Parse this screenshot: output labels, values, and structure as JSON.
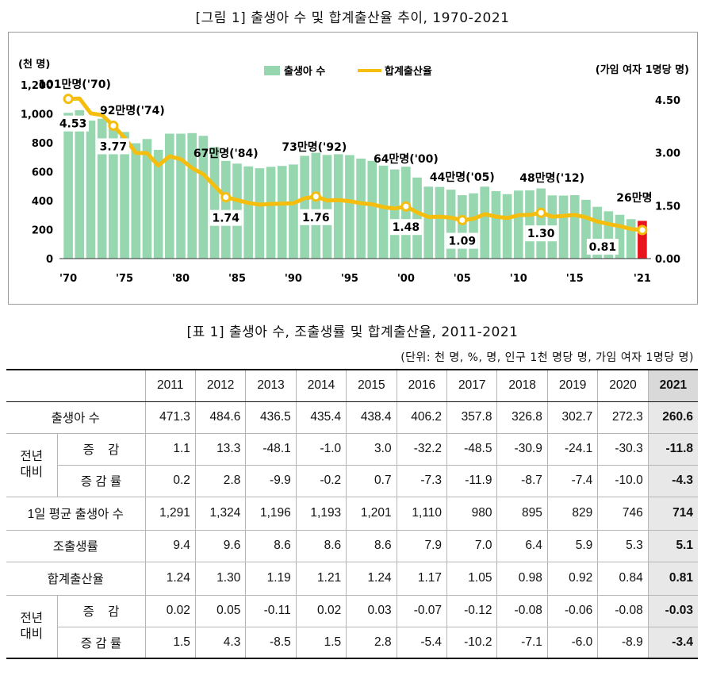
{
  "figure_title": "[그림 1] 출생아 수 및 합계출산율 추이, 1970-2021",
  "table_title": "[표 1] 출생아 수, 조출생률 및 합계출산율, 2011-2021",
  "unit_note": "(단위: 천 명, %, 명, 인구 1천 명당 명, 가임 여자 1명당 명)",
  "chart_data": {
    "type": "bar",
    "years": [
      1970,
      1971,
      1972,
      1973,
      1974,
      1975,
      1976,
      1977,
      1978,
      1979,
      1980,
      1981,
      1982,
      1983,
      1984,
      1985,
      1986,
      1987,
      1988,
      1989,
      1990,
      1991,
      1992,
      1993,
      1994,
      1995,
      1996,
      1997,
      1998,
      1999,
      2000,
      2001,
      2002,
      2003,
      2004,
      2005,
      2006,
      2007,
      2008,
      2009,
      2010,
      2011,
      2012,
      2013,
      2014,
      2015,
      2016,
      2017,
      2018,
      2019,
      2020,
      2021
    ],
    "x_tick_labels": [
      "'70",
      "'75",
      "'80",
      "'85",
      "'90",
      "'95",
      "'00",
      "'05",
      "'10",
      "'15",
      "'21"
    ],
    "series": [
      {
        "name": "출생아 수",
        "axis": "left",
        "color": "#97d7b0",
        "highlight_color": "#e8161c",
        "values": [
          1007,
          1025,
          953,
          966,
          923,
          875,
          797,
          826,
          751,
          863,
          863,
          867,
          848,
          770,
          675,
          656,
          637,
          624,
          634,
          640,
          650,
          710,
          731,
          716,
          721,
          715,
          691,
          675,
          642,
          616,
          635,
          560,
          497,
          495,
          476,
          438,
          451,
          497,
          466,
          445,
          470,
          471.3,
          484.6,
          436.5,
          435.4,
          438.4,
          406.2,
          357.8,
          326.8,
          302.7,
          272.3,
          260.6
        ]
      },
      {
        "name": "합계출산율",
        "axis": "right",
        "color": "#f5be0f",
        "values": [
          4.53,
          4.54,
          4.12,
          4.07,
          3.77,
          3.43,
          3.0,
          2.99,
          2.64,
          2.9,
          2.82,
          2.57,
          2.39,
          2.06,
          1.74,
          1.66,
          1.58,
          1.53,
          1.55,
          1.56,
          1.57,
          1.71,
          1.76,
          1.65,
          1.66,
          1.63,
          1.57,
          1.54,
          1.46,
          1.42,
          1.48,
          1.31,
          1.18,
          1.19,
          1.16,
          1.09,
          1.13,
          1.26,
          1.19,
          1.15,
          1.23,
          1.24,
          1.3,
          1.19,
          1.21,
          1.24,
          1.17,
          1.05,
          0.98,
          0.92,
          0.84,
          0.81
        ]
      }
    ],
    "left_axis": {
      "label": "(천 명)",
      "ylim": [
        0,
        1200
      ],
      "ticks": [
        "0",
        "200",
        "400",
        "600",
        "800",
        "1,000",
        "1,200"
      ]
    },
    "right_axis": {
      "label": "(가임 여자 1명당 명)",
      "ylim": [
        0,
        4.5
      ],
      "ticks": [
        "0.00",
        "1.50",
        "3.00",
        "4.50"
      ]
    },
    "legend_position": "top-center",
    "rate_labels": [
      {
        "year": 1970,
        "text": "4.53"
      },
      {
        "year": 1974,
        "text": "3.77"
      },
      {
        "year": 1984,
        "text": "1.74"
      },
      {
        "year": 1992,
        "text": "1.76"
      },
      {
        "year": 2000,
        "text": "1.48"
      },
      {
        "year": 2005,
        "text": "1.09"
      },
      {
        "year": 2012,
        "text": "1.30"
      },
      {
        "year": 2021,
        "text": "0.81"
      }
    ],
    "birth_labels": [
      {
        "year": 1970,
        "text": "101만명('70)"
      },
      {
        "year": 1974,
        "text": "92만명('74)"
      },
      {
        "year": 1984,
        "text": "67만명('84)"
      },
      {
        "year": 1992,
        "text": "73만명('92)"
      },
      {
        "year": 2000,
        "text": "64만명('00)"
      },
      {
        "year": 2005,
        "text": "44만명('05)"
      },
      {
        "year": 2012,
        "text": "48만명('12)"
      },
      {
        "year": 2021,
        "text": "26만명"
      }
    ]
  },
  "table": {
    "years": [
      "2011",
      "2012",
      "2013",
      "2014",
      "2015",
      "2016",
      "2017",
      "2018",
      "2019",
      "2020",
      "2021"
    ],
    "group_label": "전년\n대비",
    "rows": [
      {
        "label": "출생아 수",
        "values": [
          "471.3",
          "484.6",
          "436.5",
          "435.4",
          "438.4",
          "406.2",
          "357.8",
          "326.8",
          "302.7",
          "272.3",
          "260.6"
        ]
      },
      {
        "label": "증    감",
        "values": [
          "1.1",
          "13.3",
          "-48.1",
          "-1.0",
          "3.0",
          "-32.2",
          "-48.5",
          "-30.9",
          "-24.1",
          "-30.3",
          "-11.8"
        ]
      },
      {
        "label": "증 감 률",
        "values": [
          "0.2",
          "2.8",
          "-9.9",
          "-0.2",
          "0.7",
          "-7.3",
          "-11.9",
          "-8.7",
          "-7.4",
          "-10.0",
          "-4.3"
        ]
      },
      {
        "label": "1일 평균 출생아 수",
        "values": [
          "1,291",
          "1,324",
          "1,196",
          "1,193",
          "1,201",
          "1,110",
          "980",
          "895",
          "829",
          "746",
          "714"
        ]
      },
      {
        "label": "조출생률",
        "values": [
          "9.4",
          "9.6",
          "8.6",
          "8.6",
          "8.6",
          "7.9",
          "7.0",
          "6.4",
          "5.9",
          "5.3",
          "5.1"
        ]
      },
      {
        "label": "합계출산율",
        "values": [
          "1.24",
          "1.30",
          "1.19",
          "1.21",
          "1.24",
          "1.17",
          "1.05",
          "0.98",
          "0.92",
          "0.84",
          "0.81"
        ]
      },
      {
        "label": "증    감",
        "values": [
          "0.02",
          "0.05",
          "-0.11",
          "0.02",
          "0.03",
          "-0.07",
          "-0.12",
          "-0.08",
          "-0.06",
          "-0.08",
          "-0.03"
        ]
      },
      {
        "label": "증 감 률",
        "values": [
          "1.5",
          "4.3",
          "-8.5",
          "1.5",
          "2.8",
          "-5.4",
          "-10.2",
          "-7.1",
          "-6.0",
          "-8.9",
          "-3.4"
        ]
      }
    ]
  }
}
